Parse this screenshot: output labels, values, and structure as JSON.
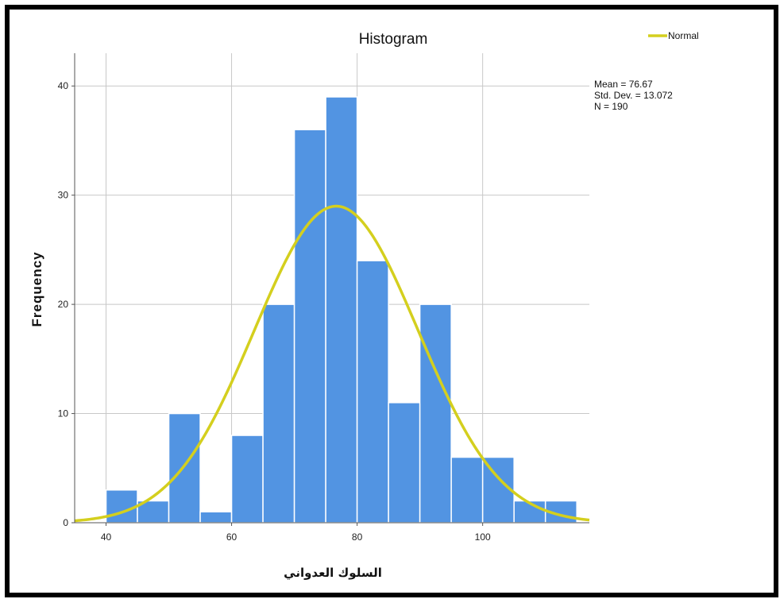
{
  "chart_data": {
    "type": "bar",
    "title": "Histogram",
    "xlabel": "السلوك العدواني",
    "ylabel": "Frequency",
    "xlim": [
      35,
      117
    ],
    "ylim": [
      0,
      43
    ],
    "x_ticks": [
      40,
      60,
      80,
      100
    ],
    "y_ticks": [
      0,
      10,
      20,
      30,
      40
    ],
    "grid": true,
    "bin_width": 5,
    "bins": [
      {
        "start": 40,
        "end": 45,
        "count": 3
      },
      {
        "start": 45,
        "end": 50,
        "count": 2
      },
      {
        "start": 50,
        "end": 55,
        "count": 10
      },
      {
        "start": 55,
        "end": 60,
        "count": 1
      },
      {
        "start": 60,
        "end": 65,
        "count": 8
      },
      {
        "start": 65,
        "end": 70,
        "count": 20
      },
      {
        "start": 70,
        "end": 75,
        "count": 36
      },
      {
        "start": 75,
        "end": 80,
        "count": 39
      },
      {
        "start": 80,
        "end": 85,
        "count": 24
      },
      {
        "start": 85,
        "end": 90,
        "count": 11
      },
      {
        "start": 90,
        "end": 95,
        "count": 20
      },
      {
        "start": 95,
        "end": 100,
        "count": 6
      },
      {
        "start": 100,
        "end": 105,
        "count": 6
      },
      {
        "start": 105,
        "end": 110,
        "count": 2
      },
      {
        "start": 110,
        "end": 115,
        "count": 2
      }
    ],
    "normal_curve": {
      "mean": 76.67,
      "std": 13.072,
      "n": 190,
      "color": "#d4cf1e"
    },
    "bar_color": "#5294e2",
    "legend": {
      "position": "top-right",
      "entries": [
        "Normal"
      ]
    },
    "stats": [
      "Mean = 76.67",
      "Std. Dev. = 13.072",
      "N = 190"
    ]
  }
}
